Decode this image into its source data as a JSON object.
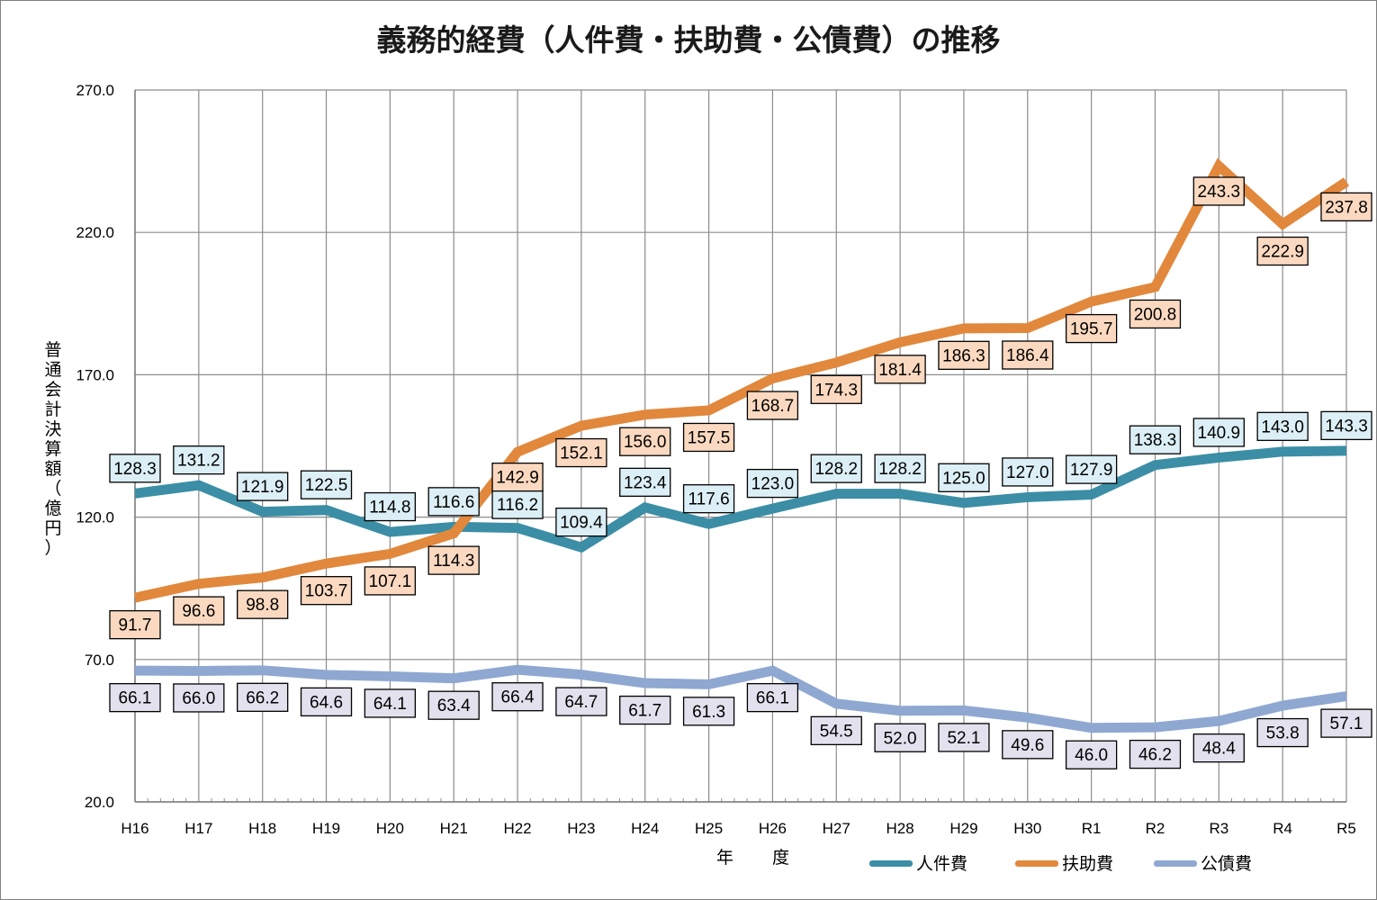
{
  "chart_data": {
    "type": "line",
    "title": "義務的経費（人件費・扶助費・公債費）の推移",
    "ylabel": "普通会計決算額（億円）",
    "xlabel": "年　度",
    "ylim": [
      20,
      270
    ],
    "yticks": [
      "270.0",
      "220.0",
      "170.0",
      "120.0",
      "70.0",
      "20.0"
    ],
    "grid": true,
    "legend_position": "bottom-right",
    "categories": [
      "H16",
      "H17",
      "H18",
      "H19",
      "H20",
      "H21",
      "H22",
      "H23",
      "H24",
      "H25",
      "H26",
      "H27",
      "H28",
      "H29",
      "H30",
      "R1",
      "R2",
      "R3",
      "R4",
      "R5"
    ],
    "series": [
      {
        "name": "人件費",
        "color": "#3b8ea5",
        "label_fill": "#dceff6",
        "values": [
          128.3,
          131.2,
          121.9,
          122.5,
          114.8,
          116.6,
          116.2,
          109.4,
          123.4,
          117.6,
          123.0,
          128.2,
          128.2,
          125.0,
          127.0,
          127.9,
          138.3,
          140.9,
          143.0,
          143.3
        ],
        "value_labels": [
          "128.3",
          "131.2",
          "121.9",
          "122.5",
          "114.8",
          "116.6",
          "116.2",
          "109.4",
          "123.4",
          "117.6",
          "123.0",
          "128.2",
          "128.2",
          "125.0",
          "127.0",
          "127.9",
          "138.3",
          "140.9",
          "143.0",
          "143.3"
        ]
      },
      {
        "name": "扶助費",
        "color": "#e1883c",
        "label_fill": "#fbd9c0",
        "values": [
          91.7,
          96.6,
          98.8,
          103.7,
          107.1,
          114.3,
          142.9,
          152.1,
          156.0,
          157.5,
          168.7,
          174.3,
          181.4,
          186.3,
          186.4,
          195.7,
          200.8,
          243.3,
          222.9,
          237.8
        ],
        "value_labels": [
          "91.7",
          "96.6",
          "98.8",
          "103.7",
          "107.1",
          "114.3",
          "142.9",
          "152.1",
          "156.0",
          "157.5",
          "168.7",
          "174.3",
          "181.4",
          "186.3",
          "186.4",
          "195.7",
          "200.8",
          "243.3",
          "222.9",
          "237.8"
        ]
      },
      {
        "name": "公債費",
        "color": "#8fa8d2",
        "label_fill": "#e4e1ee",
        "values": [
          66.1,
          66.0,
          66.2,
          64.6,
          64.1,
          63.4,
          66.4,
          64.7,
          61.7,
          61.3,
          66.1,
          54.5,
          52.0,
          52.1,
          49.6,
          46.0,
          46.2,
          48.4,
          53.8,
          57.1
        ],
        "value_labels": [
          "66.1",
          "66.0",
          "66.2",
          "64.6",
          "64.1",
          "63.4",
          "66.4",
          "64.7",
          "61.7",
          "61.3",
          "66.1",
          "54.5",
          "52.0",
          "52.1",
          "49.6",
          "46.0",
          "46.2",
          "48.4",
          "53.8",
          "57.1"
        ]
      }
    ]
  }
}
